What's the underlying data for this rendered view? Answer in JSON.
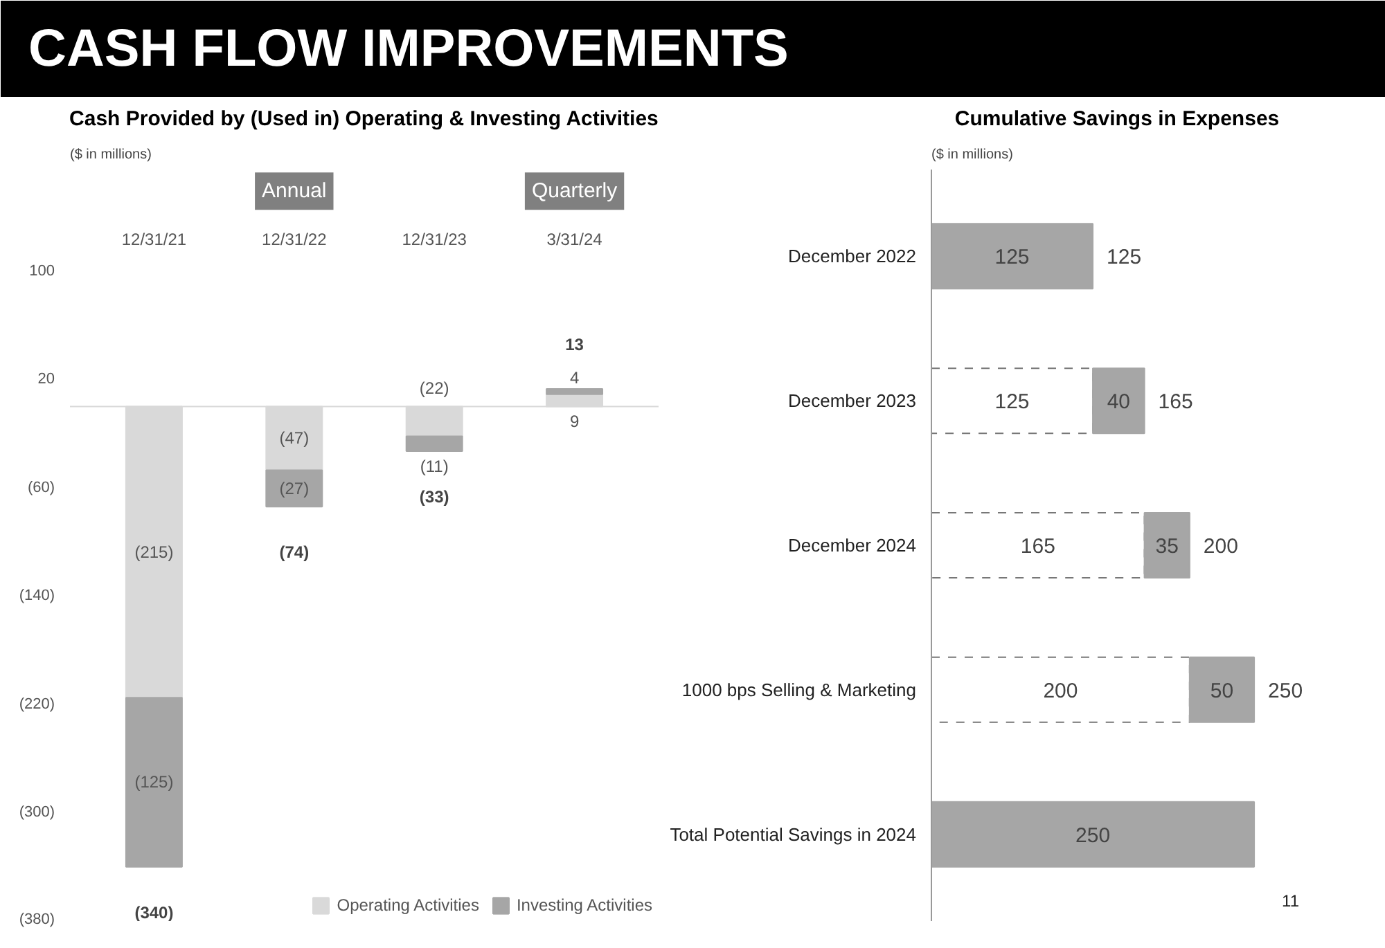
{
  "chart_data": [
    {
      "type": "bar",
      "stacked": true,
      "title": "Cash Provided by (Used in) Operating & Investing Activities",
      "subtitle": "($ in millions)",
      "annotations": [
        "CASH FLOW IMPROVEMENTS",
        "Annual",
        "Quarterly"
      ],
      "categories": [
        "12/31/21",
        "12/31/22",
        "12/31/23",
        "3/31/24"
      ],
      "series": [
        {
          "name": "Operating Activities",
          "color": "#d9d9d9",
          "values": [
            -215,
            -47,
            -22,
            9
          ],
          "value_labels": [
            "(215)",
            "(47)",
            "(22)",
            "9"
          ]
        },
        {
          "name": "Investing Activities",
          "color": "#a6a6a6",
          "values": [
            -125,
            -27,
            -11,
            4
          ],
          "value_labels": [
            "(125)",
            "(27)",
            "(11)",
            "4"
          ]
        }
      ],
      "totals": [
        "(340)",
        "(74)",
        "(33)",
        "13"
      ],
      "ylim": [
        -380,
        175
      ],
      "yticks": [
        100,
        20,
        {
          "value": -60,
          "label": "(60)"
        },
        {
          "value": -140,
          "label": "(140)"
        },
        {
          "value": -220,
          "label": "(220)"
        },
        {
          "value": -300,
          "label": "(300)"
        },
        {
          "value": -380,
          "label": "(380)"
        }
      ],
      "legend": "bottom right",
      "grid": false
    },
    {
      "type": "bar",
      "stacked": true,
      "orientation": "horizontal",
      "title": "Cumulative Savings in Expenses",
      "subtitle": "($ in millions)",
      "annotations": [
        "11"
      ],
      "categories": [
        "December 2022",
        "December 2023",
        "December 2024",
        "1000 bps Selling & Marketing",
        "Total Potential Savings in 2024"
      ],
      "series": [
        {
          "color": "#ffffff",
          "line_style": "dashed",
          "values": [
            null,
            125,
            165,
            200,
            null
          ]
        },
        {
          "color": "#a6a6a6",
          "values": [
            125,
            40,
            35,
            50,
            250
          ]
        }
      ],
      "totals": [
        "125",
        "165",
        "200",
        "250",
        null
      ],
      "data_labels": true,
      "tick_labels": "y",
      "grid": false,
      "legend": false
    }
  ]
}
